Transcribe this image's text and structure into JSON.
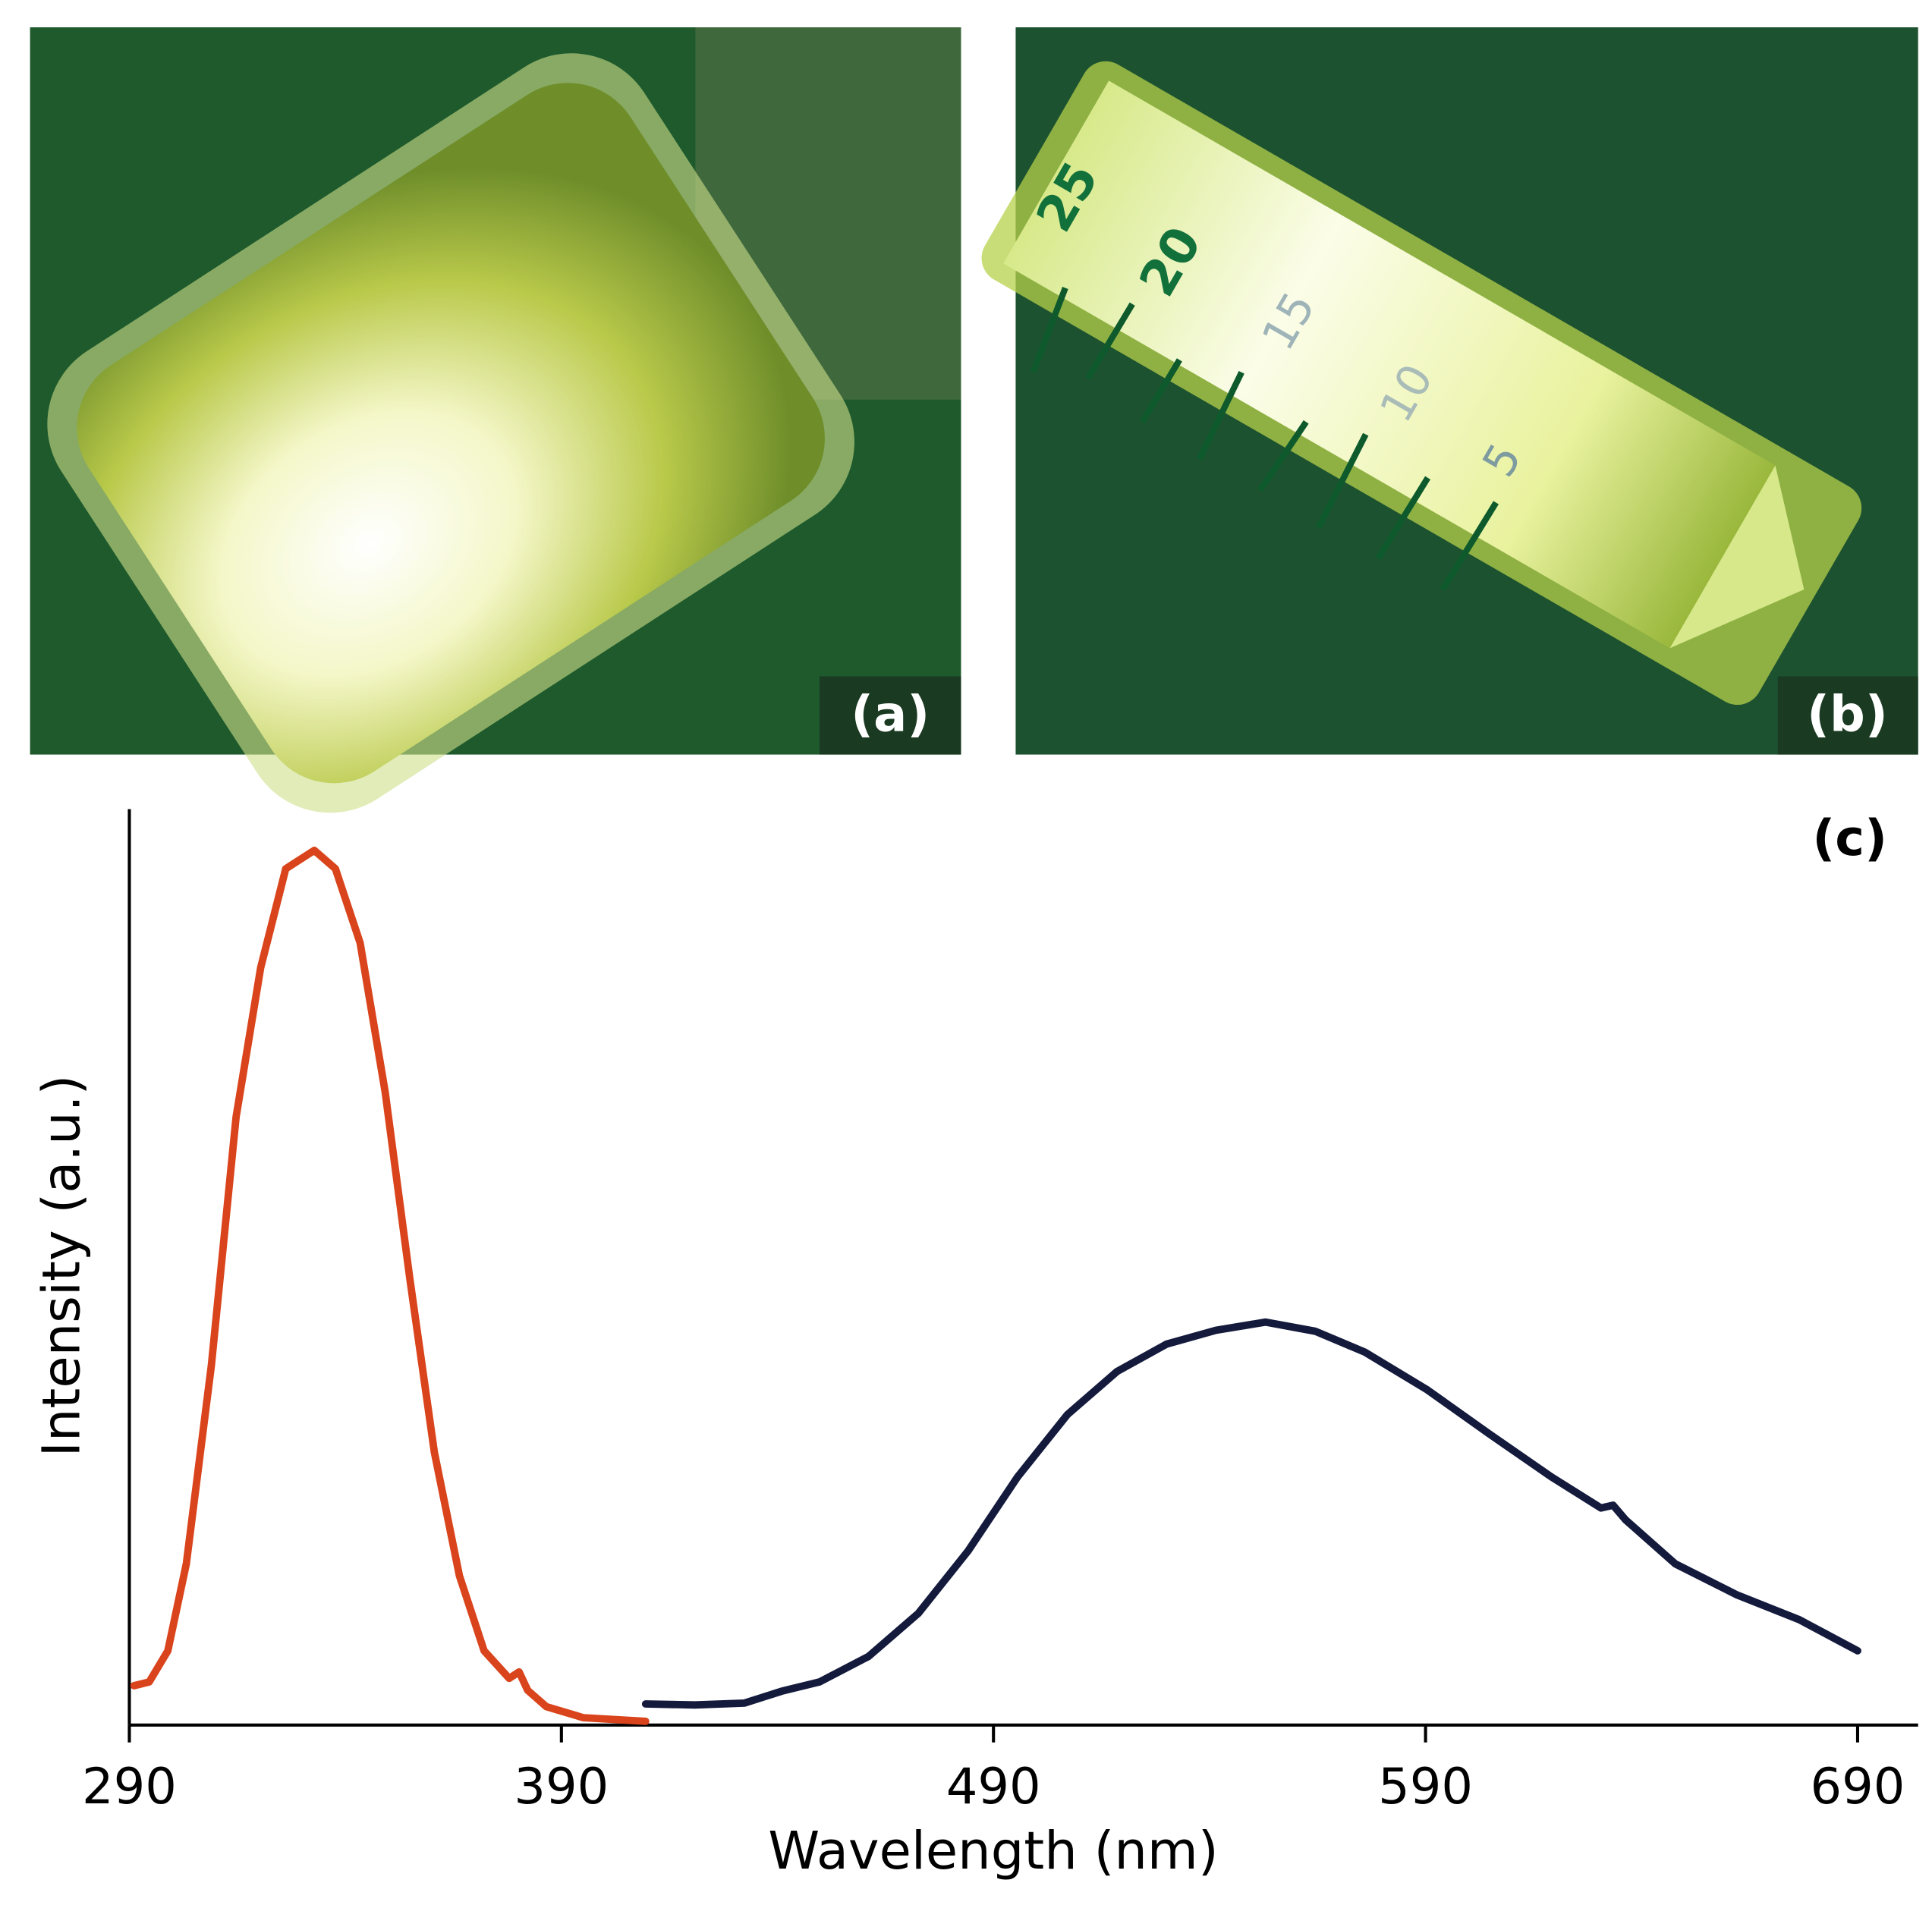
{
  "panels": {
    "a": {
      "label": "(a)"
    },
    "b": {
      "label": "(b)",
      "scale_labels": [
        "25",
        "20",
        "15",
        "10",
        "5"
      ]
    }
  },
  "chart_data": {
    "type": "line",
    "panel_label": "(c)",
    "x_label": "Wavelength (nm)",
    "y_label": "Intensity (a.u.)",
    "xlim": [
      290,
      704
    ],
    "ylim": [
      0,
      1
    ],
    "xticks": [
      290,
      390,
      490,
      590,
      690
    ],
    "series": [
      {
        "color": "#d9441c",
        "x": [
          291.1,
          294.6,
          298.9,
          303.2,
          309.0,
          314.7,
          320.4,
          326.2,
          332.8,
          337.7,
          343.4,
          349.2,
          354.9,
          360.6,
          366.4,
          372.1,
          377.9,
          380.2,
          382.2,
          386.5,
          395.1,
          409.5
        ],
        "values": [
          0.043,
          0.047,
          0.081,
          0.176,
          0.393,
          0.664,
          0.827,
          0.935,
          0.955,
          0.935,
          0.854,
          0.691,
          0.488,
          0.298,
          0.163,
          0.081,
          0.051,
          0.058,
          0.038,
          0.02,
          0.008,
          0.004
        ]
      },
      {
        "color": "#141a3c",
        "x": [
          409.5,
          420.9,
          432.4,
          441.0,
          449.7,
          461.1,
          472.6,
          484.1,
          495.6,
          507.1,
          518.6,
          530.1,
          541.5,
          553.0,
          564.5,
          576.0,
          590.4,
          604.7,
          619.1,
          630.6,
          633.4,
          636.3,
          647.8,
          662.1,
          676.5,
          690.0
        ],
        "values": [
          0.023,
          0.022,
          0.024,
          0.037,
          0.047,
          0.075,
          0.122,
          0.19,
          0.271,
          0.339,
          0.386,
          0.416,
          0.431,
          0.44,
          0.43,
          0.407,
          0.366,
          0.318,
          0.271,
          0.237,
          0.24,
          0.224,
          0.176,
          0.142,
          0.115,
          0.081
        ]
      }
    ]
  }
}
